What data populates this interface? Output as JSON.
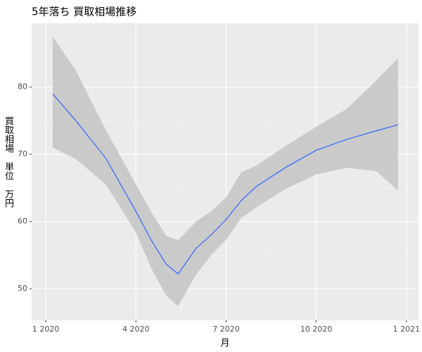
{
  "chart_data": {
    "type": "smooth",
    "title": "5年落ち 買取相場推移",
    "x_label": "月",
    "y_label": "買取相場　単位　万円",
    "x": [
      1.23,
      2,
      3,
      4,
      4.5,
      5,
      5.4,
      6,
      6.5,
      7,
      7.5,
      8,
      9,
      10,
      11,
      12,
      12.72
    ],
    "series": [
      {
        "color": "#3366ff",
        "band_color": "#c8c8c8",
        "values": [
          79,
          75,
          69.4,
          61.5,
          57.3,
          53.7,
          52.2,
          56,
          58,
          60.3,
          63.1,
          65.2,
          68.1,
          70.6,
          72.2,
          73.5,
          74.4
        ],
        "lower": [
          71,
          69.3,
          65.5,
          58.4,
          53.1,
          49,
          47.4,
          52.1,
          55,
          57.3,
          60.5,
          62.1,
          64.9,
          67,
          68,
          67.5,
          64.6
        ],
        "upper": [
          87.5,
          82.5,
          73.6,
          65.5,
          61.5,
          57.9,
          57.2,
          60,
          61.5,
          63.6,
          67.3,
          68.3,
          71.3,
          74.1,
          76.7,
          81,
          84.3
        ]
      }
    ],
    "xlim": [
      0.53,
      13.4
    ],
    "xticks": [
      {
        "value": 1,
        "label": "1 2020"
      },
      {
        "value": 4,
        "label": "4 2020"
      },
      {
        "value": 7,
        "label": "7 2020"
      },
      {
        "value": 10,
        "label": "10 2020"
      },
      {
        "value": 13,
        "label": "1 2021"
      }
    ],
    "ylim": [
      45.3,
      89.5
    ],
    "yticks": [
      50,
      60,
      70,
      80
    ],
    "grid": true
  }
}
